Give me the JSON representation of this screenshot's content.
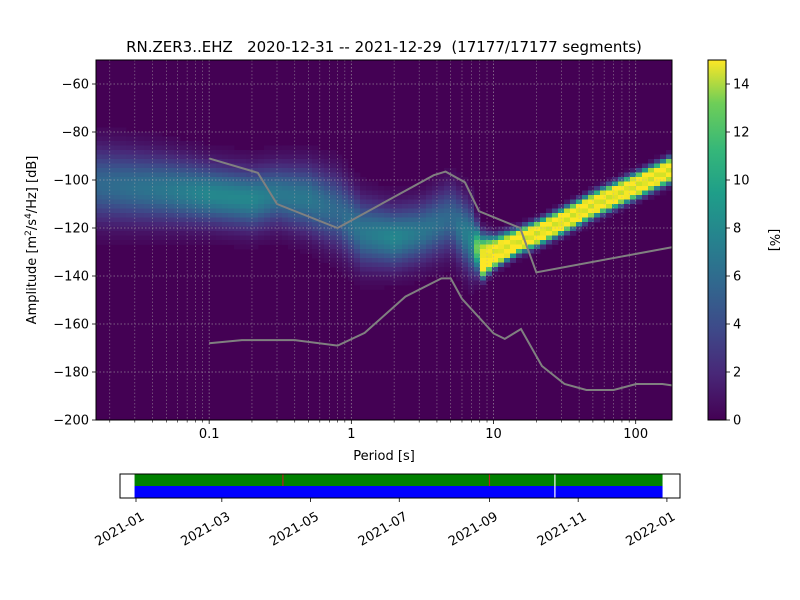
{
  "chart_data": [
    {
      "type": "heatmap",
      "title": "RN.ZER3..EHZ   2020-12-31 -- 2021-12-29  (17177/17177 segments)",
      "xlabel": "Period [s]",
      "ylabel_base": "Amplitude [m",
      "ylabel_exp1": "2",
      "ylabel_mid": "/s",
      "ylabel_exp2": "4",
      "ylabel_end": "/Hz] [dB]",
      "x_scale": "log",
      "xlim": [
        0.016,
        180
      ],
      "ylim": [
        -200,
        -50
      ],
      "x_ticks": [
        {
          "value": 0.1,
          "label": "0.1"
        },
        {
          "value": 1,
          "label": "1"
        },
        {
          "value": 10,
          "label": "10"
        },
        {
          "value": 100,
          "label": "100"
        }
      ],
      "y_ticks": [
        {
          "value": -60,
          "label": "−60"
        },
        {
          "value": -80,
          "label": "−80"
        },
        {
          "value": -100,
          "label": "−100"
        },
        {
          "value": -120,
          "label": "−120"
        },
        {
          "value": -140,
          "label": "−140"
        },
        {
          "value": -160,
          "label": "−160"
        },
        {
          "value": -180,
          "label": "−180"
        },
        {
          "value": -200,
          "label": "−200"
        }
      ],
      "grid": true,
      "colormap": "viridis",
      "background_color": "#440154",
      "psd_bands": [
        {
          "x": [
            0.016,
            0.05,
            0.1,
            0.2,
            0.3,
            0.5,
            0.8,
            1.2,
            2,
            3,
            5,
            7,
            8,
            10,
            15,
            20,
            30,
            50,
            100,
            180
          ],
          "center": [
            -102,
            -104,
            -106,
            -108,
            -106,
            -108,
            -113,
            -122,
            -124,
            -122,
            -116,
            -125,
            -130,
            -128,
            -123,
            -120,
            -115,
            -108,
            -100,
            -93
          ],
          "spread": [
            10,
            9,
            8,
            8,
            8,
            9,
            10,
            9,
            8,
            8,
            9,
            9,
            5,
            3,
            2,
            2,
            2,
            2,
            2,
            2
          ],
          "peak_pct": [
            5,
            6,
            7,
            7,
            6,
            6,
            5,
            6,
            7,
            6,
            5,
            7,
            14,
            15,
            15,
            15,
            15,
            15,
            15,
            15
          ]
        },
        {
          "x": [
            8,
            10,
            15,
            20,
            30,
            50,
            100,
            180
          ],
          "center": [
            -138,
            -134,
            -128,
            -125,
            -120,
            -113,
            -105,
            -98
          ],
          "spread": [
            3,
            2,
            2,
            2,
            2,
            2,
            2,
            2
          ],
          "peak_pct": [
            12,
            15,
            15,
            15,
            15,
            15,
            15,
            15
          ]
        }
      ],
      "noise_models": [
        {
          "points": [
            [
              0.1,
              -91
            ],
            [
              0.22,
              -97
            ],
            [
              0.3,
              -110
            ],
            [
              0.8,
              -120
            ],
            [
              3.8,
              -98
            ],
            [
              4.6,
              -96.5
            ],
            [
              6.3,
              -101
            ],
            [
              7.9,
              -113
            ],
            [
              15.4,
              -120
            ],
            [
              20,
              -138.5
            ],
            [
              180,
              -128
            ]
          ]
        },
        {
          "points": [
            [
              0.1,
              -168
            ],
            [
              0.17,
              -166.7
            ],
            [
              0.4,
              -166.7
            ],
            [
              0.8,
              -169
            ],
            [
              1.24,
              -163.7
            ],
            [
              2.4,
              -148.6
            ],
            [
              4.3,
              -141
            ],
            [
              5.0,
              -141
            ],
            [
              6.0,
              -149.5
            ],
            [
              10,
              -163.9
            ],
            [
              12,
              -166.2
            ],
            [
              15.6,
              -162.1
            ],
            [
              21.9,
              -177.5
            ],
            [
              31.6,
              -185
            ],
            [
              45,
              -187.5
            ],
            [
              70,
              -187.5
            ],
            [
              101,
              -185
            ],
            [
              154,
              -185
            ],
            [
              180,
              -185.6
            ]
          ]
        }
      ]
    },
    {
      "type": "colorbar",
      "label": "[%]",
      "range": [
        0,
        15
      ],
      "ticks": [
        {
          "value": 0,
          "label": "0"
        },
        {
          "value": 2,
          "label": "2"
        },
        {
          "value": 4,
          "label": "4"
        },
        {
          "value": 6,
          "label": "6"
        },
        {
          "value": 8,
          "label": "8"
        },
        {
          "value": 10,
          "label": "10"
        },
        {
          "value": 12,
          "label": "12"
        },
        {
          "value": 14,
          "label": "14"
        }
      ]
    },
    {
      "type": "bar",
      "xlim": [
        "2020-12-21",
        "2022-01-10"
      ],
      "x_ticks": [
        {
          "date": "2021-01-01",
          "label": "2021-01"
        },
        {
          "date": "2021-03-01",
          "label": "2021-03"
        },
        {
          "date": "2021-05-01",
          "label": "2021-05"
        },
        {
          "date": "2021-07-01",
          "label": "2021-07"
        },
        {
          "date": "2021-09-01",
          "label": "2021-09"
        },
        {
          "date": "2021-11-01",
          "label": "2021-11"
        },
        {
          "date": "2022-01-01",
          "label": "2022-01"
        }
      ],
      "series": [
        {
          "values": [
            {
              "start": "2020-12-31",
              "end": "2021-12-29",
              "color": "#008000"
            }
          ]
        },
        {
          "values": [
            {
              "start": "2020-12-31",
              "end": "2021-12-29",
              "color": "#0000ff"
            }
          ]
        }
      ],
      "gaps": [
        "2021-10-16"
      ],
      "markers": [
        {
          "date": "2021-04-12",
          "color": "#b22222"
        },
        {
          "date": "2021-09-01",
          "color": "#b22222"
        }
      ]
    }
  ]
}
